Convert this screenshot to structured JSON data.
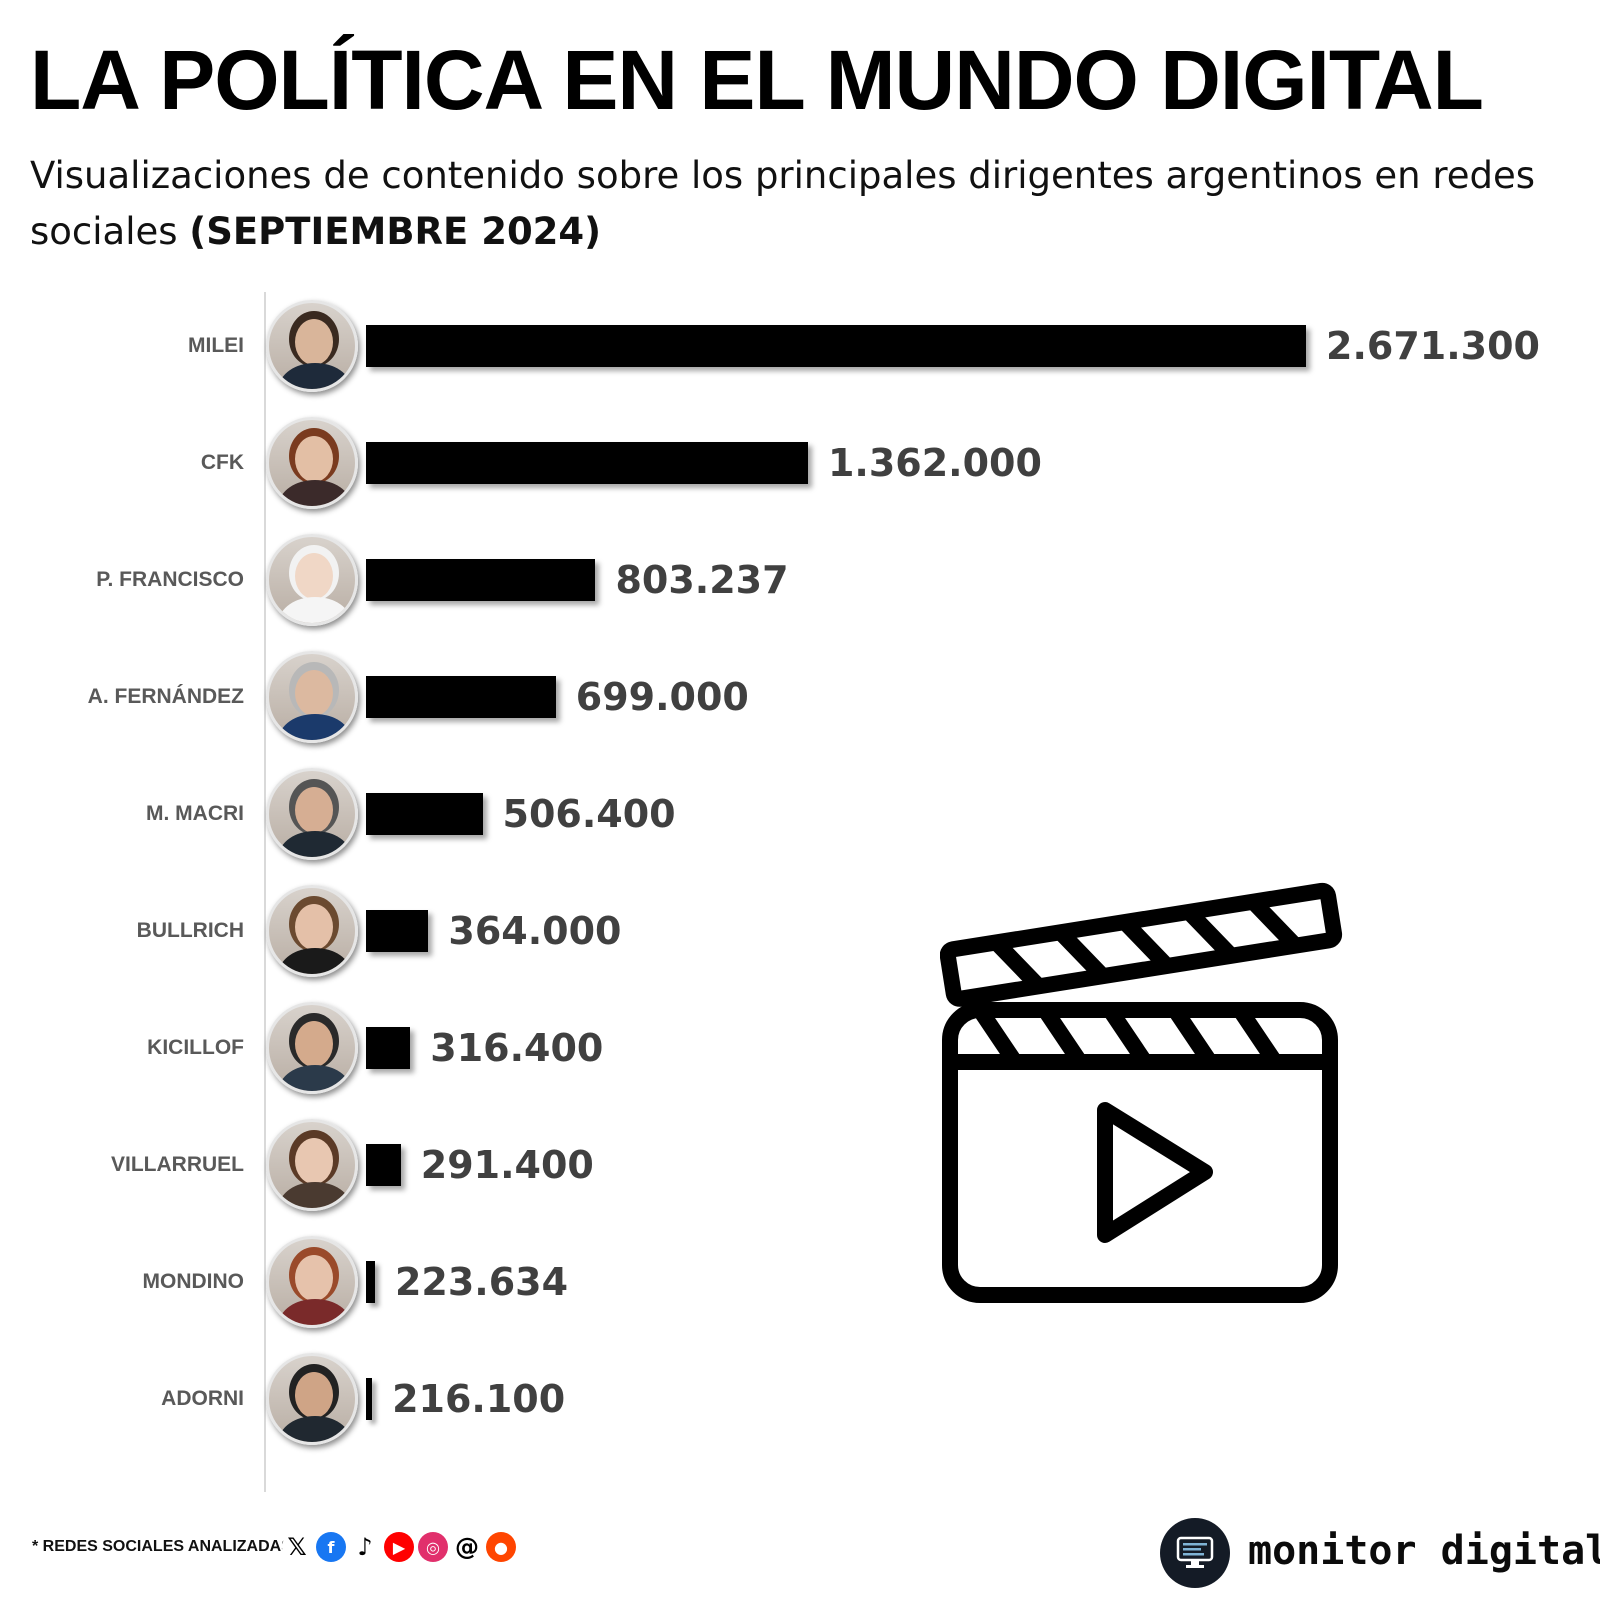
{
  "header": {
    "title": "LA POLÍTICA EN EL MUNDO DIGITAL",
    "subtitle_main": "Visualizaciones de contenido sobre los principales dirigentes argentinos en redes sociales ",
    "subtitle_bold": "(SEPTIEMBRE 2024)"
  },
  "chart_data": {
    "type": "bar",
    "orientation": "horizontal",
    "categories": [
      "MILEI",
      "CFK",
      "P. FRANCISCO",
      "A. FERNÁNDEZ",
      "M. MACRI",
      "BULLRICH",
      "KICILLOF",
      "VILLARRUEL",
      "MONDINO",
      "ADORNI"
    ],
    "values": [
      2671300,
      1362000,
      803237,
      699000,
      506400,
      364000,
      316400,
      291400,
      223634,
      216100
    ],
    "value_labels": [
      "2.671.300",
      "1.362.000",
      "803.237",
      "699.000",
      "506.400",
      "364.000",
      "316.400",
      "291.400",
      "223.634",
      "216.100"
    ],
    "bar_color": "#000000",
    "value_color": "#404040",
    "grid": false
  },
  "footer": {
    "note": "* REDES SOCIALES ANALIZADAS",
    "social_icons": [
      {
        "name": "x-icon",
        "glyph": "𝕏",
        "color": "#ffffff",
        "fg": "#000000"
      },
      {
        "name": "facebook-icon",
        "glyph": "f",
        "color": "#1877f2",
        "fg": "#ffffff"
      },
      {
        "name": "tiktok-icon",
        "glyph": "♪",
        "color": "#ffffff",
        "fg": "#000000"
      },
      {
        "name": "youtube-icon",
        "glyph": "▶",
        "color": "#ff0000",
        "fg": "#ffffff"
      },
      {
        "name": "instagram-icon",
        "glyph": "◎",
        "color": "#e1306c",
        "fg": "#ffffff"
      },
      {
        "name": "threads-icon",
        "glyph": "@",
        "color": "#ffffff",
        "fg": "#000000"
      },
      {
        "name": "reddit-icon",
        "glyph": "●",
        "color": "#ff4500",
        "fg": "#ffffff"
      }
    ],
    "brand": "monitor digital"
  }
}
